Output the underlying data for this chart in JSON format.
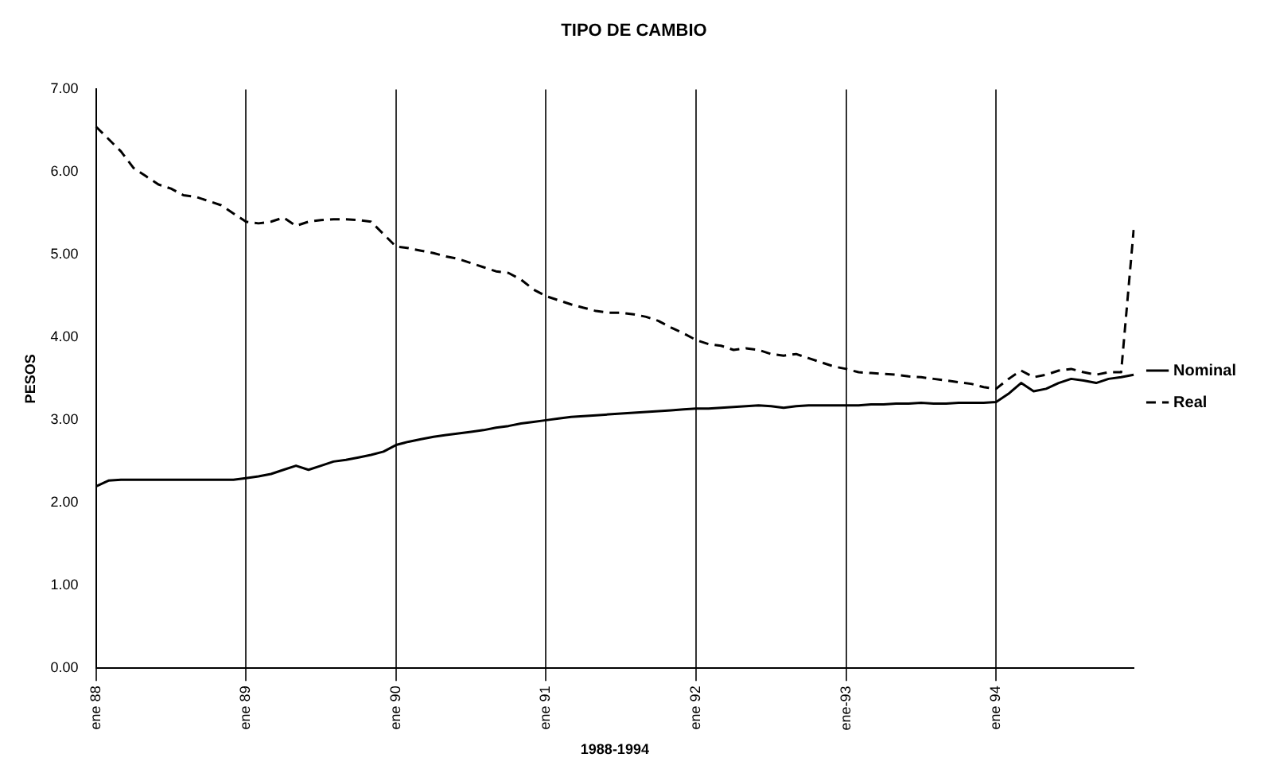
{
  "chart_data": {
    "type": "line",
    "title": "TIPO DE CAMBIO",
    "xlabel": "1988-1994",
    "ylabel": "PESOS",
    "categories": [
      "ene 88",
      null,
      null,
      null,
      null,
      null,
      null,
      null,
      null,
      null,
      null,
      null,
      "ene 89",
      null,
      null,
      null,
      null,
      null,
      null,
      null,
      null,
      null,
      null,
      null,
      "ene 90",
      null,
      null,
      null,
      null,
      null,
      null,
      null,
      null,
      null,
      null,
      null,
      "ene 91",
      null,
      null,
      null,
      null,
      null,
      null,
      null,
      null,
      null,
      null,
      null,
      "ene 92",
      null,
      null,
      null,
      null,
      null,
      null,
      null,
      null,
      null,
      null,
      null,
      "ene-93",
      null,
      null,
      null,
      null,
      null,
      null,
      null,
      null,
      null,
      null,
      null,
      "ene 94",
      null,
      null,
      null,
      null,
      null,
      null,
      null,
      null,
      null,
      null,
      null
    ],
    "series": [
      {
        "name": "Nominal",
        "color": "#000000",
        "line_style": "solid",
        "values": [
          2.2,
          2.27,
          2.28,
          2.28,
          2.28,
          2.28,
          2.28,
          2.28,
          2.28,
          2.28,
          2.28,
          2.28,
          2.3,
          2.32,
          2.35,
          2.4,
          2.45,
          2.4,
          2.45,
          2.5,
          2.52,
          2.55,
          2.58,
          2.62,
          2.7,
          2.74,
          2.77,
          2.8,
          2.82,
          2.84,
          2.86,
          2.88,
          2.91,
          2.93,
          2.96,
          2.98,
          3.0,
          3.02,
          3.04,
          3.05,
          3.06,
          3.07,
          3.08,
          3.09,
          3.1,
          3.11,
          3.12,
          3.13,
          3.14,
          3.14,
          3.15,
          3.16,
          3.17,
          3.18,
          3.17,
          3.15,
          3.17,
          3.18,
          3.18,
          3.18,
          3.18,
          3.18,
          3.19,
          3.19,
          3.2,
          3.2,
          3.21,
          3.2,
          3.2,
          3.21,
          3.21,
          3.21,
          3.22,
          3.32,
          3.45,
          3.35,
          3.38,
          3.45,
          3.5,
          3.48,
          3.45,
          3.5,
          3.52,
          3.55
        ]
      },
      {
        "name": "Real",
        "color": "#000000",
        "line_style": "dashed",
        "values": [
          6.55,
          6.4,
          6.25,
          6.05,
          5.95,
          5.85,
          5.8,
          5.72,
          5.7,
          5.65,
          5.6,
          5.5,
          5.4,
          5.38,
          5.4,
          5.45,
          5.35,
          5.4,
          5.42,
          5.43,
          5.43,
          5.42,
          5.4,
          5.25,
          5.1,
          5.08,
          5.05,
          5.02,
          4.98,
          4.95,
          4.9,
          4.85,
          4.8,
          4.78,
          4.7,
          4.58,
          4.5,
          4.45,
          4.4,
          4.36,
          4.32,
          4.3,
          4.3,
          4.28,
          4.25,
          4.2,
          4.12,
          4.05,
          3.97,
          3.92,
          3.9,
          3.85,
          3.87,
          3.85,
          3.8,
          3.78,
          3.8,
          3.75,
          3.7,
          3.65,
          3.62,
          3.58,
          3.57,
          3.56,
          3.55,
          3.53,
          3.52,
          3.5,
          3.48,
          3.46,
          3.44,
          3.4,
          3.38,
          3.5,
          3.6,
          3.52,
          3.55,
          3.6,
          3.62,
          3.58,
          3.55,
          3.58,
          3.58,
          5.3
        ]
      }
    ],
    "ylim": [
      0,
      7
    ],
    "yticks": [
      {
        "value": 0,
        "label": "0.00"
      },
      {
        "value": 1,
        "label": "1.00"
      },
      {
        "value": 2,
        "label": "2.00"
      },
      {
        "value": 3,
        "label": "3.00"
      },
      {
        "value": 4,
        "label": "4.00"
      },
      {
        "value": 5,
        "label": "5.00"
      },
      {
        "value": 6,
        "label": "6.00"
      },
      {
        "value": 7,
        "label": "7.00"
      }
    ],
    "grid": "x",
    "legend": "right",
    "marker": "none"
  }
}
